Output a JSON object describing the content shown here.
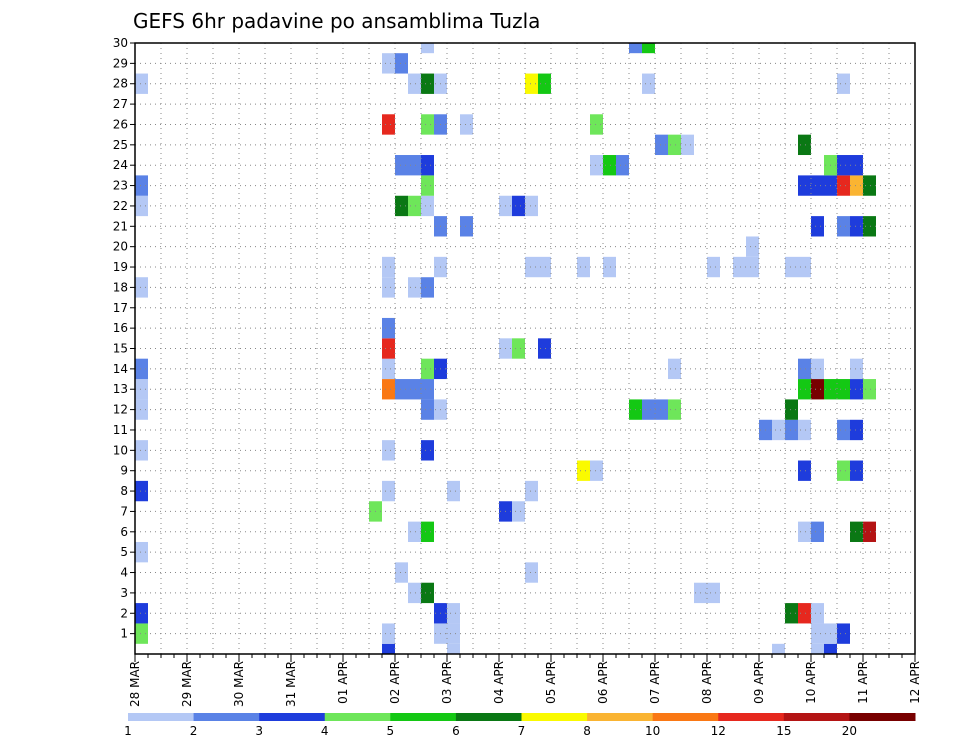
{
  "chart_data": {
    "type": "heatmap",
    "title": "GEFS 6hr padavine po ansamblima Tuzla",
    "xlabel": "",
    "ylabel": "",
    "x_ticks": [
      "28 MAR",
      "29 MAR",
      "30 MAR",
      "31 MAR",
      "01 APR",
      "02 APR",
      "03 APR",
      "04 APR",
      "05 APR",
      "06 APR",
      "07 APR",
      "08 APR",
      "09 APR",
      "10 APR",
      "11 APR",
      "12 APR"
    ],
    "y_ticks": [
      1,
      2,
      3,
      4,
      5,
      6,
      7,
      8,
      9,
      10,
      11,
      12,
      13,
      14,
      15,
      16,
      17,
      18,
      19,
      20,
      21,
      22,
      23,
      24,
      25,
      26,
      27,
      28,
      29,
      30
    ],
    "xlim_days": [
      0,
      15
    ],
    "ylim": [
      0,
      30
    ],
    "grid": true,
    "colorbar": {
      "position": "bottom",
      "labels": [
        "1",
        "2",
        "3",
        "4",
        "5",
        "6",
        "7",
        "8",
        "10",
        "12",
        "15",
        "20"
      ],
      "colors": [
        "#b4c8f5",
        "#5a82e6",
        "#1e3cdc",
        "#6ee65a",
        "#14c814",
        "#0a7814",
        "#fafa00",
        "#fab432",
        "#fa7814",
        "#e6281e",
        "#b41414",
        "#780000"
      ]
    },
    "cell_width_days": 0.25,
    "cells": [
      {
        "day": 0.0,
        "member": 1,
        "level": 4
      },
      {
        "day": 0.0,
        "member": 2,
        "level": 3
      },
      {
        "day": 0.0,
        "member": 5,
        "level": 1
      },
      {
        "day": 0.0,
        "member": 8,
        "level": 3
      },
      {
        "day": 0.0,
        "member": 10,
        "level": 1
      },
      {
        "day": 0.0,
        "member": 12,
        "level": 1
      },
      {
        "day": 0.0,
        "member": 13,
        "level": 1
      },
      {
        "day": 0.0,
        "member": 14,
        "level": 2
      },
      {
        "day": 0.0,
        "member": 18,
        "level": 1
      },
      {
        "day": 0.0,
        "member": 22,
        "level": 1
      },
      {
        "day": 0.0,
        "member": 23,
        "level": 2
      },
      {
        "day": 0.0,
        "member": 28,
        "level": 1
      },
      {
        "day": 4.5,
        "member": 7,
        "level": 4
      },
      {
        "day": 4.75,
        "member": 0,
        "level": 3
      },
      {
        "day": 4.75,
        "member": 1,
        "level": 1
      },
      {
        "day": 4.75,
        "member": 8,
        "level": 1
      },
      {
        "day": 4.75,
        "member": 10,
        "level": 1
      },
      {
        "day": 4.75,
        "member": 13,
        "level": 9
      },
      {
        "day": 4.75,
        "member": 14,
        "level": 1
      },
      {
        "day": 4.75,
        "member": 15,
        "level": 10
      },
      {
        "day": 4.75,
        "member": 16,
        "level": 2
      },
      {
        "day": 4.75,
        "member": 18,
        "level": 1
      },
      {
        "day": 4.75,
        "member": 19,
        "level": 1
      },
      {
        "day": 4.75,
        "member": 26,
        "level": 10
      },
      {
        "day": 4.75,
        "member": 29,
        "level": 1
      },
      {
        "day": 5.0,
        "member": 4,
        "level": 1
      },
      {
        "day": 5.0,
        "member": 13,
        "level": 2
      },
      {
        "day": 5.0,
        "member": 22,
        "level": 6
      },
      {
        "day": 5.0,
        "member": 24,
        "level": 2
      },
      {
        "day": 5.0,
        "member": 29,
        "level": 2
      },
      {
        "day": 5.25,
        "member": 3,
        "level": 1
      },
      {
        "day": 5.25,
        "member": 6,
        "level": 1
      },
      {
        "day": 5.25,
        "member": 13,
        "level": 2
      },
      {
        "day": 5.25,
        "member": 18,
        "level": 1
      },
      {
        "day": 5.25,
        "member": 22,
        "level": 4
      },
      {
        "day": 5.25,
        "member": 24,
        "level": 2
      },
      {
        "day": 5.25,
        "member": 28,
        "level": 1
      },
      {
        "day": 5.5,
        "member": 3,
        "level": 6
      },
      {
        "day": 5.5,
        "member": 6,
        "level": 5
      },
      {
        "day": 5.5,
        "member": 10,
        "level": 3
      },
      {
        "day": 5.5,
        "member": 12,
        "level": 2
      },
      {
        "day": 5.5,
        "member": 13,
        "level": 2
      },
      {
        "day": 5.5,
        "member": 14,
        "level": 4
      },
      {
        "day": 5.5,
        "member": 18,
        "level": 2
      },
      {
        "day": 5.5,
        "member": 22,
        "level": 1
      },
      {
        "day": 5.5,
        "member": 23,
        "level": 4
      },
      {
        "day": 5.5,
        "member": 24,
        "level": 3
      },
      {
        "day": 5.5,
        "member": 26,
        "level": 4
      },
      {
        "day": 5.5,
        "member": 28,
        "level": 6
      },
      {
        "day": 5.5,
        "member": 30,
        "level": 1
      },
      {
        "day": 5.75,
        "member": 1,
        "level": 1
      },
      {
        "day": 5.75,
        "member": 2,
        "level": 3
      },
      {
        "day": 5.75,
        "member": 12,
        "level": 1
      },
      {
        "day": 5.75,
        "member": 14,
        "level": 3
      },
      {
        "day": 5.75,
        "member": 19,
        "level": 1
      },
      {
        "day": 5.75,
        "member": 21,
        "level": 2
      },
      {
        "day": 5.75,
        "member": 26,
        "level": 2
      },
      {
        "day": 5.75,
        "member": 28,
        "level": 1
      },
      {
        "day": 6.0,
        "member": 0,
        "level": 1
      },
      {
        "day": 6.0,
        "member": 1,
        "level": 1
      },
      {
        "day": 6.0,
        "member": 2,
        "level": 1
      },
      {
        "day": 6.0,
        "member": 8,
        "level": 1
      },
      {
        "day": 6.25,
        "member": 21,
        "level": 2
      },
      {
        "day": 6.25,
        "member": 26,
        "level": 1
      },
      {
        "day": 7.0,
        "member": 7,
        "level": 3
      },
      {
        "day": 7.0,
        "member": 15,
        "level": 1
      },
      {
        "day": 7.0,
        "member": 22,
        "level": 1
      },
      {
        "day": 7.25,
        "member": 7,
        "level": 1
      },
      {
        "day": 7.25,
        "member": 15,
        "level": 4
      },
      {
        "day": 7.25,
        "member": 22,
        "level": 3
      },
      {
        "day": 7.5,
        "member": 4,
        "level": 1
      },
      {
        "day": 7.5,
        "member": 8,
        "level": 1
      },
      {
        "day": 7.5,
        "member": 19,
        "level": 1
      },
      {
        "day": 7.5,
        "member": 22,
        "level": 1
      },
      {
        "day": 7.5,
        "member": 28,
        "level": 7
      },
      {
        "day": 7.75,
        "member": 15,
        "level": 3
      },
      {
        "day": 7.75,
        "member": 19,
        "level": 1
      },
      {
        "day": 7.75,
        "member": 28,
        "level": 5
      },
      {
        "day": 8.5,
        "member": 9,
        "level": 7
      },
      {
        "day": 8.5,
        "member": 19,
        "level": 1
      },
      {
        "day": 8.75,
        "member": 9,
        "level": 1
      },
      {
        "day": 8.75,
        "member": 24,
        "level": 1
      },
      {
        "day": 8.75,
        "member": 26,
        "level": 4
      },
      {
        "day": 9.0,
        "member": 19,
        "level": 1
      },
      {
        "day": 9.0,
        "member": 24,
        "level": 5
      },
      {
        "day": 9.25,
        "member": 24,
        "level": 2
      },
      {
        "day": 9.5,
        "member": 12,
        "level": 5
      },
      {
        "day": 9.5,
        "member": 30,
        "level": 2
      },
      {
        "day": 9.75,
        "member": 12,
        "level": 2
      },
      {
        "day": 9.75,
        "member": 28,
        "level": 1
      },
      {
        "day": 9.75,
        "member": 30,
        "level": 5
      },
      {
        "day": 10.0,
        "member": 12,
        "level": 2
      },
      {
        "day": 10.0,
        "member": 25,
        "level": 2
      },
      {
        "day": 10.25,
        "member": 12,
        "level": 4
      },
      {
        "day": 10.25,
        "member": 14,
        "level": 1
      },
      {
        "day": 10.25,
        "member": 25,
        "level": 4
      },
      {
        "day": 10.5,
        "member": 25,
        "level": 1
      },
      {
        "day": 10.75,
        "member": 3,
        "level": 1
      },
      {
        "day": 11.0,
        "member": 3,
        "level": 1
      },
      {
        "day": 11.0,
        "member": 19,
        "level": 1
      },
      {
        "day": 11.5,
        "member": 19,
        "level": 1
      },
      {
        "day": 11.75,
        "member": 19,
        "level": 1
      },
      {
        "day": 11.75,
        "member": 20,
        "level": 1
      },
      {
        "day": 12.0,
        "member": 11,
        "level": 2
      },
      {
        "day": 12.25,
        "member": 0,
        "level": 1
      },
      {
        "day": 12.25,
        "member": 11,
        "level": 1
      },
      {
        "day": 12.5,
        "member": 2,
        "level": 6
      },
      {
        "day": 12.5,
        "member": 11,
        "level": 2
      },
      {
        "day": 12.5,
        "member": 12,
        "level": 6
      },
      {
        "day": 12.5,
        "member": 19,
        "level": 1
      },
      {
        "day": 12.75,
        "member": 2,
        "level": 10
      },
      {
        "day": 12.75,
        "member": 6,
        "level": 1
      },
      {
        "day": 12.75,
        "member": 9,
        "level": 3
      },
      {
        "day": 12.75,
        "member": 11,
        "level": 1
      },
      {
        "day": 12.75,
        "member": 13,
        "level": 5
      },
      {
        "day": 12.75,
        "member": 14,
        "level": 2
      },
      {
        "day": 12.75,
        "member": 19,
        "level": 1
      },
      {
        "day": 12.75,
        "member": 23,
        "level": 3
      },
      {
        "day": 12.75,
        "member": 25,
        "level": 6
      },
      {
        "day": 13.0,
        "member": 0,
        "level": 1
      },
      {
        "day": 13.0,
        "member": 1,
        "level": 1
      },
      {
        "day": 13.0,
        "member": 2,
        "level": 1
      },
      {
        "day": 13.0,
        "member": 6,
        "level": 2
      },
      {
        "day": 13.0,
        "member": 13,
        "level": 12
      },
      {
        "day": 13.0,
        "member": 14,
        "level": 1
      },
      {
        "day": 13.0,
        "member": 21,
        "level": 3
      },
      {
        "day": 13.0,
        "member": 23,
        "level": 3
      },
      {
        "day": 13.25,
        "member": 0,
        "level": 3
      },
      {
        "day": 13.25,
        "member": 1,
        "level": 1
      },
      {
        "day": 13.25,
        "member": 13,
        "level": 5
      },
      {
        "day": 13.25,
        "member": 23,
        "level": 3
      },
      {
        "day": 13.25,
        "member": 24,
        "level": 4
      },
      {
        "day": 13.5,
        "member": 1,
        "level": 3
      },
      {
        "day": 13.5,
        "member": 9,
        "level": 4
      },
      {
        "day": 13.5,
        "member": 11,
        "level": 2
      },
      {
        "day": 13.5,
        "member": 13,
        "level": 5
      },
      {
        "day": 13.5,
        "member": 21,
        "level": 2
      },
      {
        "day": 13.5,
        "member": 23,
        "level": 10
      },
      {
        "day": 13.5,
        "member": 24,
        "level": 3
      },
      {
        "day": 13.5,
        "member": 28,
        "level": 1
      },
      {
        "day": 13.75,
        "member": 6,
        "level": 6
      },
      {
        "day": 13.75,
        "member": 9,
        "level": 3
      },
      {
        "day": 13.75,
        "member": 11,
        "level": 3
      },
      {
        "day": 13.75,
        "member": 13,
        "level": 3
      },
      {
        "day": 13.75,
        "member": 14,
        "level": 1
      },
      {
        "day": 13.75,
        "member": 21,
        "level": 3
      },
      {
        "day": 13.75,
        "member": 23,
        "level": 8
      },
      {
        "day": 13.75,
        "member": 24,
        "level": 3
      },
      {
        "day": 14.0,
        "member": 6,
        "level": 11
      },
      {
        "day": 14.0,
        "member": 13,
        "level": 4
      },
      {
        "day": 14.0,
        "member": 21,
        "level": 6
      },
      {
        "day": 14.0,
        "member": 23,
        "level": 6
      }
    ]
  }
}
